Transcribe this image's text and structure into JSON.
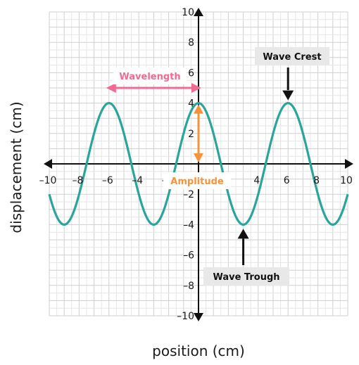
{
  "chart_data": {
    "type": "line",
    "xlabel": "position (cm)",
    "ylabel": "displacement (cm)",
    "xlim": [
      -10,
      10
    ],
    "ylim": [
      -10,
      10
    ],
    "grid": true,
    "x_ticks": [
      "–10",
      "–8",
      "–6",
      "–4",
      "–2",
      "4",
      "6",
      "8",
      "10"
    ],
    "y_ticks": [
      "10",
      "8",
      "6",
      "4",
      "2",
      "–2",
      "–4",
      "–6",
      "–8",
      "–10"
    ],
    "series": [
      {
        "function": "y = 4 cos(2π(x − 0)/6)",
        "amplitude": 4,
        "wavelength": 6,
        "x_range": [
          -10,
          10
        ],
        "color": "#2aa59b"
      }
    ],
    "annotations": {
      "wavelength": {
        "label": "Wavelength",
        "color": "#f06a92",
        "from_x": -6,
        "to_x": 0,
        "y": 5
      },
      "amplitude": {
        "label": "Amplitude",
        "color": "#f5923a",
        "x": 0,
        "from_y": 0,
        "to_y": 4
      },
      "crest": {
        "label": "Wave Crest",
        "x": 6,
        "y": 4
      },
      "trough": {
        "label": "Wave Trough",
        "x": 3,
        "y": -4
      }
    }
  }
}
